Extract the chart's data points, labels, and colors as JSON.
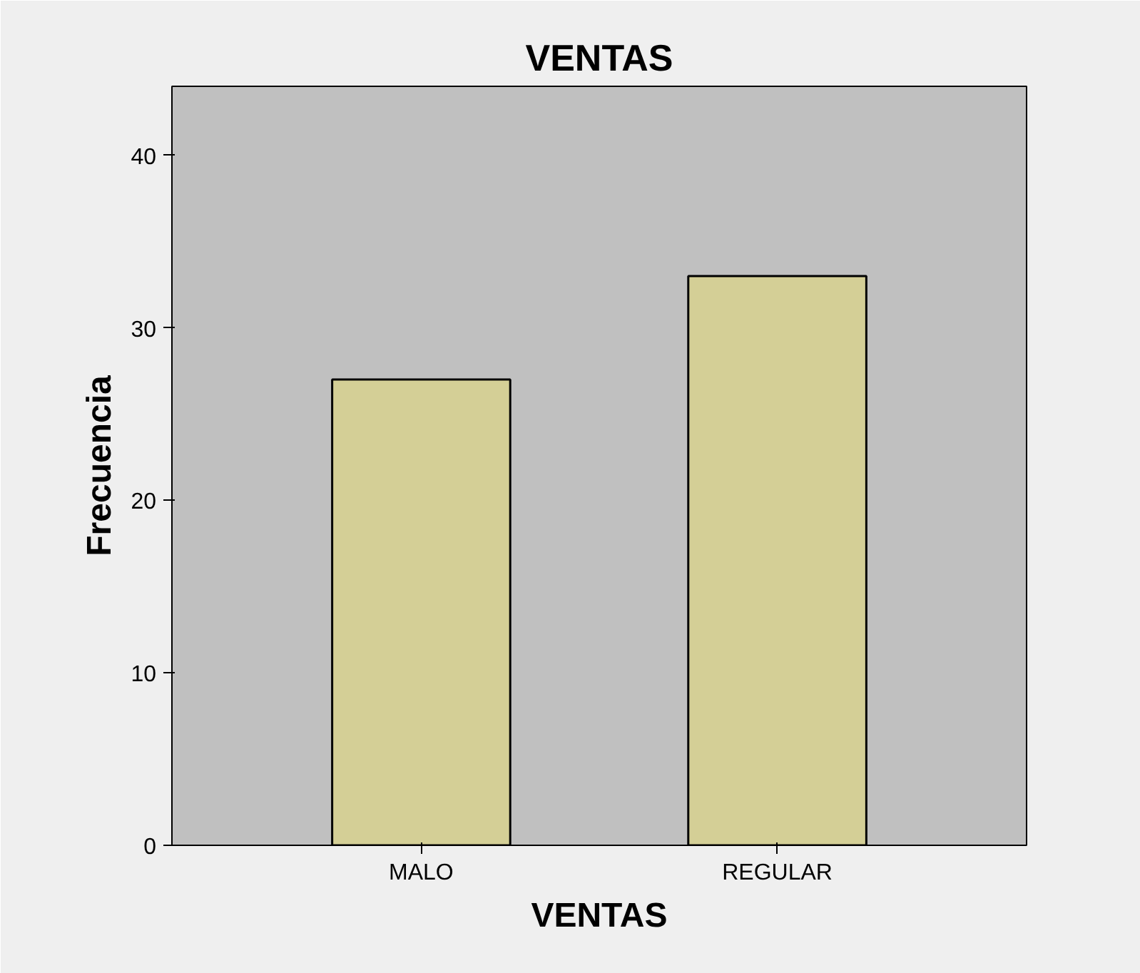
{
  "chart_data": {
    "type": "bar",
    "title": "VENTAS",
    "xlabel": "VENTAS",
    "ylabel": "Frecuencia",
    "categories": [
      "MALO",
      "REGULAR"
    ],
    "values": [
      27,
      33
    ],
    "color": "#d4cf96",
    "ylim": [
      0,
      44
    ],
    "yticks": [
      0,
      10,
      20,
      30,
      40
    ],
    "grid": false
  }
}
